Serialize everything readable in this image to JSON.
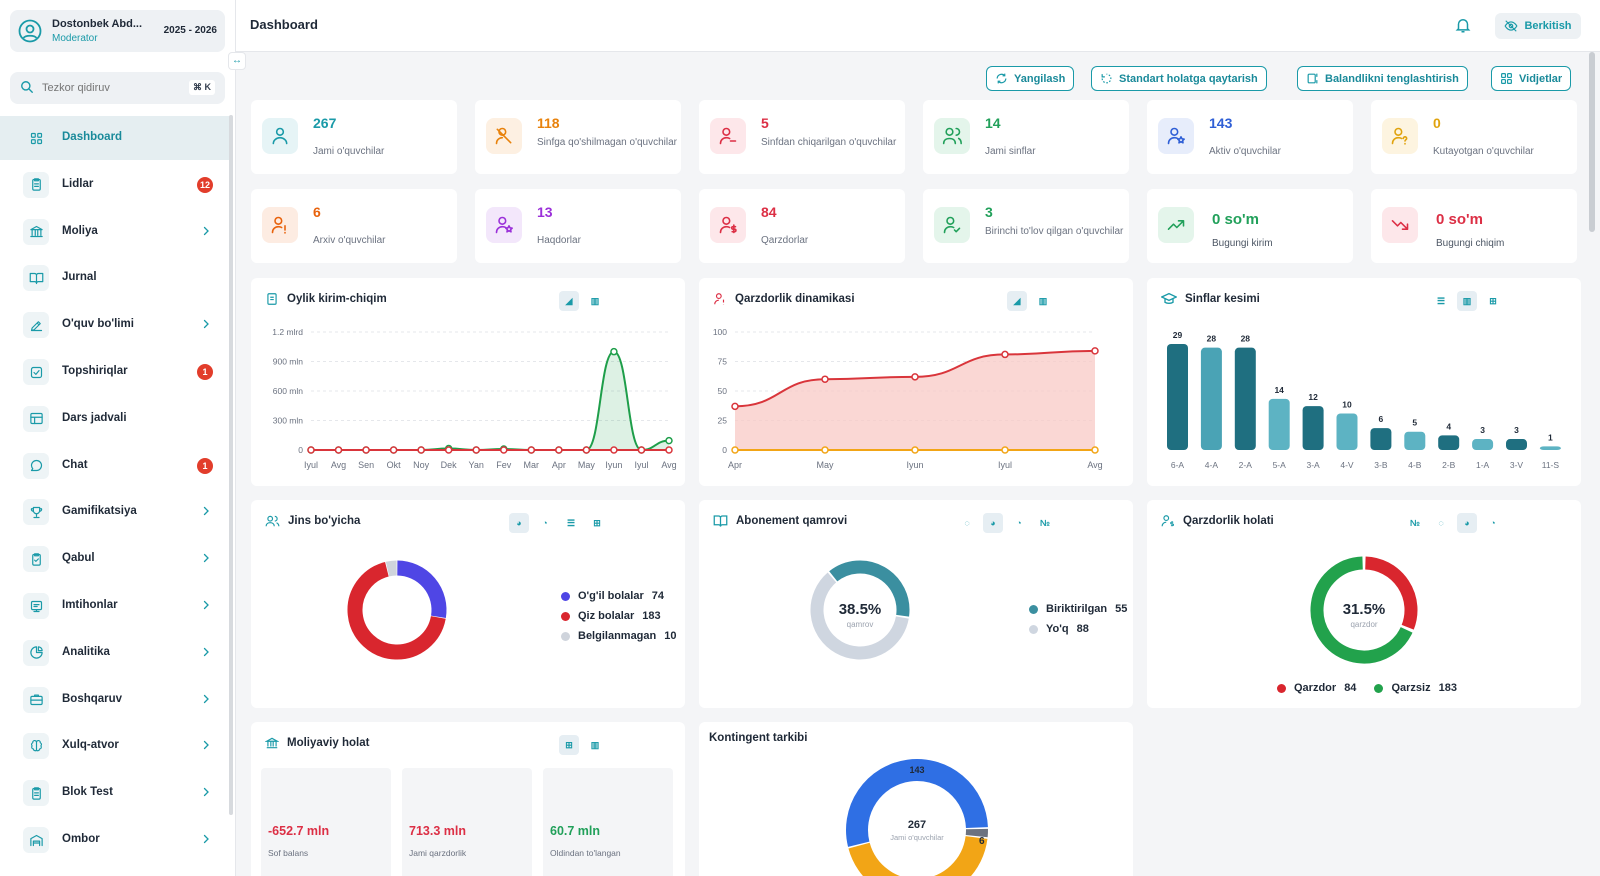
{
  "sidebar": {
    "user_name": "Dostonbek Abd...",
    "user_role": "Moderator",
    "year": "2025 - 2026",
    "search_placeholder": "Tezkor qidiruv",
    "search_shortcut": "⌘ K",
    "items": [
      {
        "label": "Dashboard",
        "icon": "grid-icon",
        "active": true
      },
      {
        "label": "Lidlar",
        "icon": "clipboard-icon",
        "badge": "12"
      },
      {
        "label": "Moliya",
        "icon": "bank-icon",
        "chevron": true
      },
      {
        "label": "Jurnal",
        "icon": "book-icon"
      },
      {
        "label": "O'quv bo'limi",
        "icon": "pen-icon",
        "chevron": true
      },
      {
        "label": "Topshiriqlar",
        "icon": "checkbox-icon",
        "badge": "1"
      },
      {
        "label": "Dars jadvali",
        "icon": "table-icon"
      },
      {
        "label": "Chat",
        "icon": "chat-icon",
        "badge": "1"
      },
      {
        "label": "Gamifikatsiya",
        "icon": "trophy-icon",
        "chevron": true
      },
      {
        "label": "Qabul",
        "icon": "clipboard-check-icon",
        "chevron": true
      },
      {
        "label": "Imtihonlar",
        "icon": "exam-icon",
        "chevron": true
      },
      {
        "label": "Analitika",
        "icon": "pie-icon",
        "chevron": true
      },
      {
        "label": "Boshqaruv",
        "icon": "briefcase-icon",
        "chevron": true
      },
      {
        "label": "Xulq-atvor",
        "icon": "brain-icon",
        "chevron": true
      },
      {
        "label": "Blok Test",
        "icon": "clipboard-icon",
        "chevron": true
      },
      {
        "label": "Ombor",
        "icon": "warehouse-icon",
        "chevron": true
      }
    ]
  },
  "header": {
    "title": "Dashboard",
    "pin_label": "Berkitish"
  },
  "toolbar": {
    "refresh": "Yangilash",
    "reset": "Standart holatga qaytarish",
    "equalize": "Balandlikni tenglashtirish",
    "widgets": "Vidjetlar"
  },
  "stats": [
    {
      "value": "267",
      "label": "Jami o'quvchilar",
      "color": "#1a9aa8",
      "bg": "#e6f4f6"
    },
    {
      "value": "118",
      "label": "Sinfga qo'shilmagan o'quvchilar",
      "color": "#e8820c",
      "bg": "#fdf0e2"
    },
    {
      "value": "5",
      "label": "Sinfdan chiqarilgan o'quvchilar",
      "color": "#dc2f45",
      "bg": "#fde7ea"
    },
    {
      "value": "14",
      "label": "Jami sinflar",
      "color": "#21a05a",
      "bg": "#e4f5eb"
    },
    {
      "value": "143",
      "label": "Aktiv o'quvchilar",
      "color": "#2f5fd6",
      "bg": "#e7edfb"
    },
    {
      "value": "0",
      "label": "Kutayotgan o'quvchilar",
      "color": "#e0a30e",
      "bg": "#fdf4e0"
    },
    {
      "value": "6",
      "label": "Arxiv o'quvchilar",
      "color": "#e8620c",
      "bg": "#fdece2"
    },
    {
      "value": "13",
      "label": "Haqdorlar",
      "color": "#9b30d9",
      "bg": "#f3e7fb"
    },
    {
      "value": "84",
      "label": "Qarzdorlar",
      "color": "#dc2f45",
      "bg": "#fde7ea"
    },
    {
      "value": "3",
      "label": "Birinchi to'lov qilgan o'quvchilar",
      "color": "#21a05a",
      "bg": "#e4f5eb"
    },
    {
      "value": "0 so'm",
      "label": "Bugungi kirim",
      "color": "#21a05a",
      "bg": "#e4f5eb"
    },
    {
      "value": "0 so'm",
      "label": "Bugungi chiqim",
      "color": "#dc2f45",
      "bg": "#fde7ea"
    }
  ],
  "cards": {
    "monthly": "Oylik kirim-chiqim",
    "debt": "Qarzdorlik dinamikasi",
    "classes": "Sinflar kesimi",
    "gender": "Jins bo'yicha",
    "subscription": "Abonement qamrovi",
    "debt_status": "Qarzdorlik holati",
    "finance": "Moliyaviy holat",
    "contingent": "Kontingent tarkibi"
  },
  "chart_data": [
    {
      "type": "line",
      "categories": [
        "Iyul",
        "Avg",
        "Sen",
        "Okt",
        "Noy",
        "Dek",
        "Yan",
        "Fev",
        "Mar",
        "Apr",
        "May",
        "Iyun",
        "Iyul",
        "Avg"
      ],
      "ytick_labels": [
        "0",
        "300 mln",
        "600 mln",
        "900 mln",
        "1.2 mlrd"
      ],
      "yticks": [
        0,
        300,
        600,
        900,
        1200
      ],
      "ylim": [
        0,
        1200
      ],
      "series": [
        {
          "color": "#1e9e4a",
          "values": [
            0,
            0,
            0,
            0,
            0,
            15,
            0,
            10,
            0,
            0,
            0,
            1000,
            0,
            95
          ]
        },
        {
          "color": "#d9353b",
          "values": [
            0,
            0,
            0,
            0,
            0,
            0,
            0,
            0,
            0,
            0,
            0,
            0,
            0,
            0
          ]
        }
      ]
    },
    {
      "type": "area",
      "categories": [
        "Apr",
        "May",
        "Iyun",
        "Iyul",
        "Avg"
      ],
      "yticks": [
        0,
        25,
        50,
        75,
        100
      ],
      "ylim": [
        0,
        100
      ],
      "series": [
        {
          "color": "#d9353b",
          "values": [
            37,
            60,
            62,
            81,
            84
          ]
        },
        {
          "color": "#f2a516",
          "values": [
            0,
            0,
            0,
            0,
            0
          ]
        }
      ]
    },
    {
      "type": "bar",
      "categories": [
        "6-A",
        "4-A",
        "2-A",
        "5-A",
        "3-A",
        "4-V",
        "3-B",
        "4-B",
        "2-B",
        "1-A",
        "3-V",
        "11-S"
      ],
      "values": [
        29,
        28,
        28,
        14,
        12,
        10,
        6,
        5,
        4,
        3,
        3,
        1
      ]
    },
    {
      "type": "pie",
      "labels": [
        "O'g'il bolalar",
        "Qiz bolalar",
        "Belgilanmagan"
      ],
      "values": [
        74,
        183,
        10
      ],
      "colors": [
        "#4f46e5",
        "#d9262e",
        "#cfd4dc"
      ]
    },
    {
      "type": "pie",
      "center_value": "38.5%",
      "center_label": "qamrov",
      "labels": [
        "Biriktirilgan",
        "Yo'q"
      ],
      "values": [
        55,
        88
      ],
      "colors": [
        "#3b8fa0",
        "#cfd6e0"
      ]
    },
    {
      "type": "pie",
      "center_value": "31.5%",
      "center_label": "qarzdor",
      "labels": [
        "Qarzdor",
        "Qarzsiz"
      ],
      "values": [
        84,
        183
      ],
      "colors": [
        "#d9262e",
        "#22a24c"
      ]
    },
    {
      "type": "pie",
      "center_value": "267",
      "center_label": "Jami o'quvchilar",
      "outer_labels": [
        "143",
        "6"
      ],
      "values": [
        143,
        6,
        118
      ],
      "colors": [
        "#2f6fe4",
        "#6b7280",
        "#f2a516"
      ]
    }
  ],
  "finance": [
    {
      "value": "-652.7 mln",
      "label": "Sof balans",
      "color": "#dc2f45"
    },
    {
      "value": "713.3 mln",
      "label": "Jami qarzdorlik",
      "color": "#dc2f45"
    },
    {
      "value": "60.7 mln",
      "label": "Oldindan to'langan",
      "color": "#21a05a"
    }
  ]
}
